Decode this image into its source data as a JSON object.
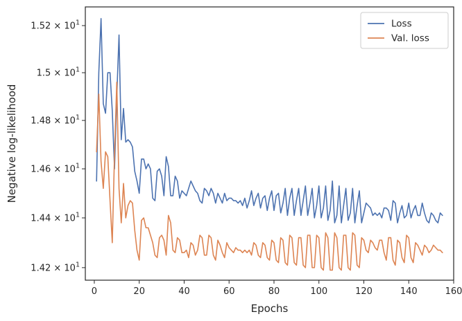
{
  "chart_data": {
    "type": "line",
    "title": "",
    "xlabel": "Epochs",
    "ylabel": "Negative log-likelihood",
    "xlim": [
      -4,
      160
    ],
    "ylim": [
      14.15,
      15.28
    ],
    "y_scale": "log",
    "x_ticks": [
      0,
      20,
      40,
      60,
      80,
      100,
      120,
      140,
      160
    ],
    "x_tick_labels": [
      "0",
      "20",
      "40",
      "60",
      "80",
      "100",
      "120",
      "140",
      "160"
    ],
    "y_ticks": [
      14.2,
      14.4,
      14.6,
      14.8,
      15.0,
      15.2
    ],
    "y_tick_labels": [
      {
        "mantissa": "1.42",
        "base": "10",
        "exp": "1"
      },
      {
        "mantissa": "1.44",
        "base": "10",
        "exp": "1"
      },
      {
        "mantissa": "1.46",
        "base": "10",
        "exp": "1"
      },
      {
        "mantissa": "1.48",
        "base": "10",
        "exp": "1"
      },
      {
        "mantissa": "1.5",
        "base": "10",
        "exp": "1"
      },
      {
        "mantissa": "1.52",
        "base": "10",
        "exp": "1"
      }
    ],
    "grid": false,
    "legend_position": "top-right",
    "series": [
      {
        "name": "Loss",
        "color": "#4c72b0",
        "x": [
          1,
          2,
          3,
          4,
          5,
          6,
          7,
          8,
          9,
          10,
          11,
          12,
          13,
          14,
          15,
          16,
          17,
          18,
          19,
          20,
          21,
          22,
          23,
          24,
          25,
          26,
          27,
          28,
          29,
          30,
          31,
          32,
          33,
          34,
          35,
          36,
          37,
          38,
          39,
          40,
          41,
          42,
          43,
          44,
          45,
          46,
          47,
          48,
          49,
          50,
          51,
          52,
          53,
          54,
          55,
          56,
          57,
          58,
          59,
          60,
          61,
          62,
          63,
          64,
          65,
          66,
          67,
          68,
          69,
          70,
          71,
          72,
          73,
          74,
          75,
          76,
          77,
          78,
          79,
          80,
          81,
          82,
          83,
          84,
          85,
          86,
          87,
          88,
          89,
          90,
          91,
          92,
          93,
          94,
          95,
          96,
          97,
          98,
          99,
          100,
          101,
          102,
          103,
          104,
          105,
          106,
          107,
          108,
          109,
          110,
          111,
          112,
          113,
          114,
          115,
          116,
          117,
          118,
          119,
          120,
          121,
          122,
          123,
          124,
          125,
          126,
          127,
          128,
          129,
          130,
          131,
          132,
          133,
          134,
          135,
          136,
          137,
          138,
          139,
          140,
          141,
          142,
          143,
          144,
          145,
          146,
          147,
          148,
          149,
          150,
          151,
          152,
          153,
          154,
          155
        ],
        "y": [
          14.55,
          15.0,
          15.23,
          14.87,
          14.83,
          15.0,
          15.0,
          14.84,
          14.6,
          14.9,
          15.16,
          14.72,
          14.85,
          14.71,
          14.72,
          14.71,
          14.69,
          14.59,
          14.55,
          14.5,
          14.64,
          14.64,
          14.6,
          14.62,
          14.6,
          14.48,
          14.47,
          14.59,
          14.6,
          14.57,
          14.49,
          14.65,
          14.61,
          14.49,
          14.49,
          14.57,
          14.55,
          14.48,
          14.51,
          14.5,
          14.49,
          14.52,
          14.55,
          14.53,
          14.51,
          14.5,
          14.47,
          14.46,
          14.52,
          14.51,
          14.49,
          14.52,
          14.5,
          14.46,
          14.5,
          14.48,
          14.46,
          14.5,
          14.47,
          14.48,
          14.48,
          14.47,
          14.47,
          14.46,
          14.47,
          14.45,
          14.48,
          14.44,
          14.47,
          14.51,
          14.45,
          14.48,
          14.5,
          14.44,
          14.48,
          14.49,
          14.43,
          14.48,
          14.51,
          14.43,
          14.49,
          14.5,
          14.42,
          14.46,
          14.52,
          14.41,
          14.48,
          14.52,
          14.41,
          14.47,
          14.52,
          14.41,
          14.47,
          14.53,
          14.41,
          14.46,
          14.52,
          14.4,
          14.45,
          14.53,
          14.4,
          14.44,
          14.53,
          14.39,
          14.43,
          14.55,
          14.38,
          14.41,
          14.53,
          14.38,
          14.45,
          14.52,
          14.39,
          14.42,
          14.52,
          14.38,
          14.45,
          14.51,
          14.38,
          14.42,
          14.46,
          14.45,
          14.44,
          14.41,
          14.42,
          14.41,
          14.42,
          14.4,
          14.44,
          14.44,
          14.43,
          14.39,
          14.47,
          14.46,
          14.38,
          14.42,
          14.45,
          14.4,
          14.41,
          14.46,
          14.4,
          14.43,
          14.45,
          14.41,
          14.41,
          14.46,
          14.42,
          14.39,
          14.38,
          14.42,
          14.41,
          14.39,
          14.38,
          14.42,
          14.41
        ]
      },
      {
        "name": "Val. loss",
        "color": "#dd8452",
        "x": [
          1,
          2,
          3,
          4,
          5,
          6,
          7,
          8,
          9,
          10,
          11,
          12,
          13,
          14,
          15,
          16,
          17,
          18,
          19,
          20,
          21,
          22,
          23,
          24,
          25,
          26,
          27,
          28,
          29,
          30,
          31,
          32,
          33,
          34,
          35,
          36,
          37,
          38,
          39,
          40,
          41,
          42,
          43,
          44,
          45,
          46,
          47,
          48,
          49,
          50,
          51,
          52,
          53,
          54,
          55,
          56,
          57,
          58,
          59,
          60,
          61,
          62,
          63,
          64,
          65,
          66,
          67,
          68,
          69,
          70,
          71,
          72,
          73,
          74,
          75,
          76,
          77,
          78,
          79,
          80,
          81,
          82,
          83,
          84,
          85,
          86,
          87,
          88,
          89,
          90,
          91,
          92,
          93,
          94,
          95,
          96,
          97,
          98,
          99,
          100,
          101,
          102,
          103,
          104,
          105,
          106,
          107,
          108,
          109,
          110,
          111,
          112,
          113,
          114,
          115,
          116,
          117,
          118,
          119,
          120,
          121,
          122,
          123,
          124,
          125,
          126,
          127,
          128,
          129,
          130,
          131,
          132,
          133,
          134,
          135,
          136,
          137,
          138,
          139,
          140,
          141,
          142,
          143,
          144,
          145,
          146,
          147,
          148,
          149,
          150,
          151,
          152,
          153,
          154,
          155
        ],
        "y": [
          14.67,
          14.91,
          14.63,
          14.52,
          14.67,
          14.65,
          14.47,
          14.3,
          14.66,
          14.96,
          14.52,
          14.38,
          14.54,
          14.4,
          14.45,
          14.47,
          14.46,
          14.35,
          14.27,
          14.23,
          14.39,
          14.4,
          14.36,
          14.36,
          14.33,
          14.3,
          14.25,
          14.24,
          14.32,
          14.33,
          14.31,
          14.25,
          14.41,
          14.38,
          14.27,
          14.26,
          14.32,
          14.31,
          14.26,
          14.26,
          14.27,
          14.24,
          14.3,
          14.29,
          14.25,
          14.27,
          14.33,
          14.32,
          14.25,
          14.25,
          14.33,
          14.32,
          14.25,
          14.23,
          14.31,
          14.29,
          14.26,
          14.24,
          14.3,
          14.28,
          14.27,
          14.26,
          14.28,
          14.27,
          14.27,
          14.26,
          14.27,
          14.26,
          14.27,
          14.25,
          14.3,
          14.29,
          14.25,
          14.24,
          14.3,
          14.29,
          14.24,
          14.23,
          14.31,
          14.3,
          14.23,
          14.22,
          14.32,
          14.31,
          14.22,
          14.21,
          14.33,
          14.32,
          14.22,
          14.21,
          14.32,
          14.32,
          14.21,
          14.2,
          14.33,
          14.33,
          14.2,
          14.2,
          14.33,
          14.32,
          14.2,
          14.19,
          14.34,
          14.32,
          14.19,
          14.19,
          14.34,
          14.32,
          14.2,
          14.19,
          14.33,
          14.33,
          14.2,
          14.19,
          14.34,
          14.33,
          14.21,
          14.2,
          14.32,
          14.31,
          14.27,
          14.26,
          14.31,
          14.3,
          14.28,
          14.27,
          14.31,
          14.31,
          14.26,
          14.23,
          14.32,
          14.32,
          14.23,
          14.21,
          14.31,
          14.3,
          14.24,
          14.22,
          14.33,
          14.32,
          14.24,
          14.22,
          14.3,
          14.29,
          14.27,
          14.25,
          14.29,
          14.28,
          14.26,
          14.27,
          14.29,
          14.28,
          14.27,
          14.27,
          14.26
        ]
      }
    ]
  }
}
